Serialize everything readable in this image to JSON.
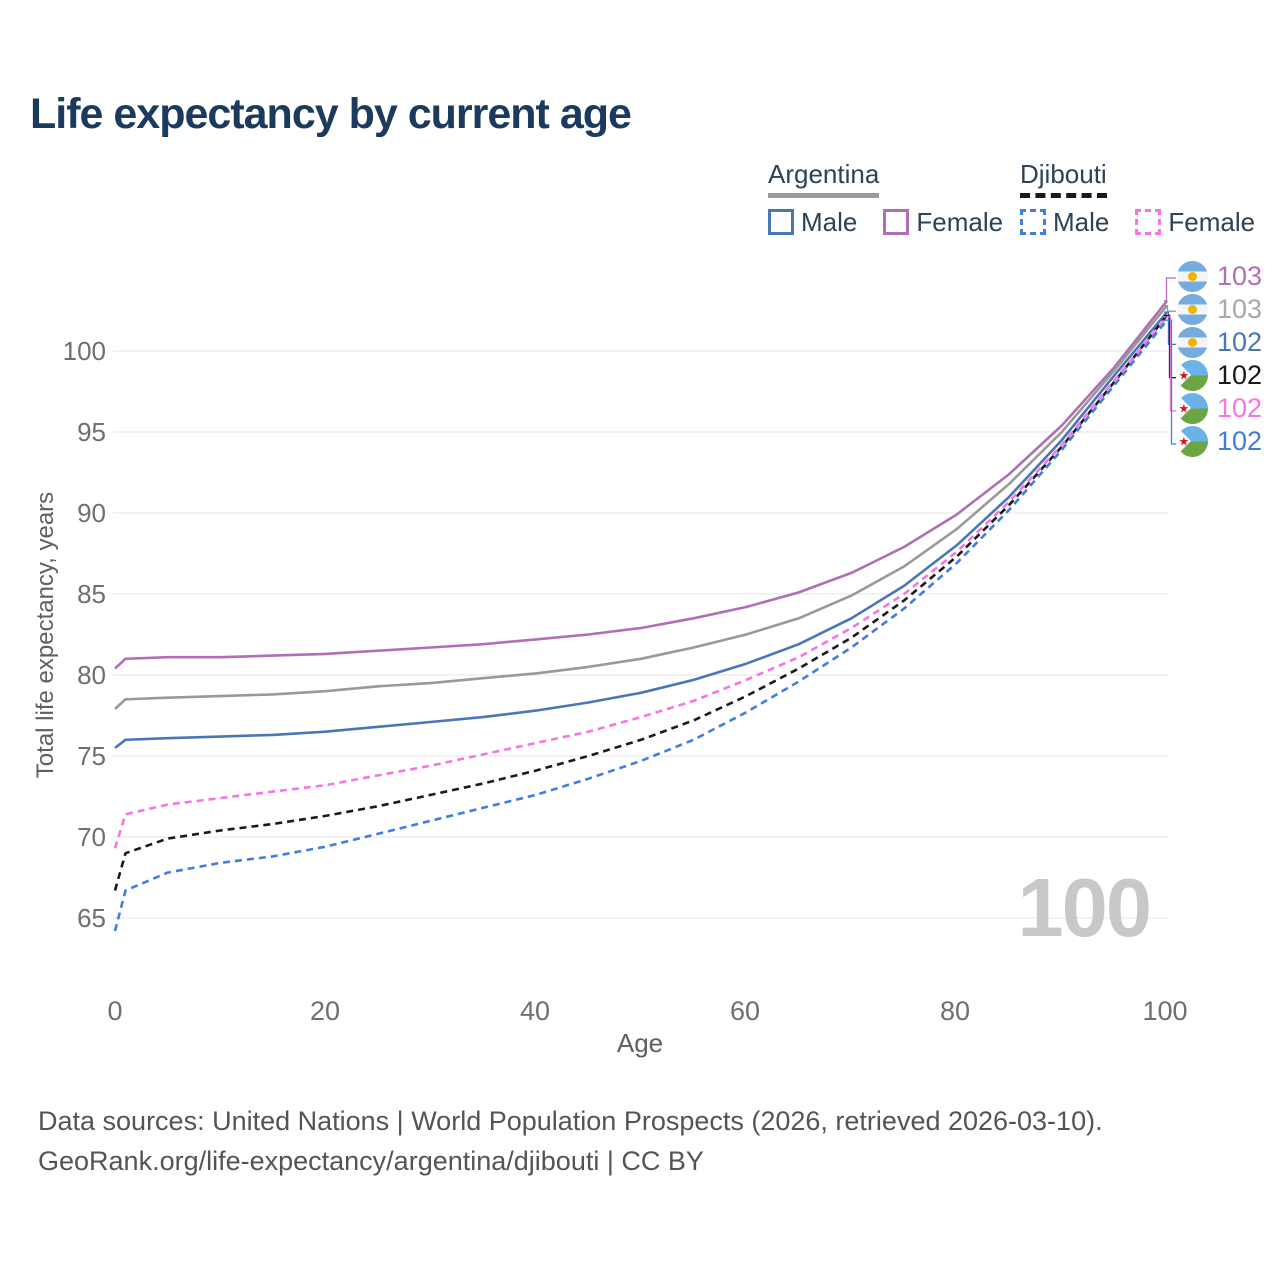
{
  "title": "Life expectancy by current age",
  "legend": {
    "groups": [
      {
        "label": "Argentina",
        "underline_style": "solid",
        "underline_color": "#9b9b9b",
        "items": [
          {
            "label": "Male",
            "color": "#4a76b8",
            "dashed": false
          },
          {
            "label": "Female",
            "color": "#b06fb5",
            "dashed": false
          }
        ]
      },
      {
        "label": "Djibouti",
        "underline_style": "dashed",
        "underline_color": "#1a1a1a",
        "items": [
          {
            "label": "Male",
            "color": "#3f7ee0",
            "dashed": true
          },
          {
            "label": "Female",
            "color": "#f575e5",
            "dashed": true
          }
        ]
      }
    ]
  },
  "chart_data": {
    "type": "line",
    "title": "Life expectancy by current age",
    "xlabel": "Age",
    "ylabel": "Total life expectancy, years",
    "xlim": [
      0,
      100
    ],
    "ylim": [
      63,
      104
    ],
    "x_ticks": [
      "0",
      "20",
      "40",
      "60",
      "80",
      "100"
    ],
    "y_ticks": [
      "65",
      "70",
      "75",
      "80",
      "85",
      "90",
      "95",
      "100"
    ],
    "grid": "horizontal",
    "legend_position": "top-right",
    "x": [
      0,
      1,
      5,
      10,
      15,
      20,
      25,
      30,
      35,
      40,
      45,
      50,
      55,
      60,
      65,
      70,
      75,
      80,
      85,
      90,
      95,
      100
    ],
    "series": [
      {
        "name": "Argentina Female",
        "country": "Argentina",
        "sex": "Female",
        "color": "#b06fb5",
        "dashed": false,
        "end_label": "103",
        "values": [
          80.4,
          81.0,
          81.1,
          81.1,
          81.2,
          81.3,
          81.5,
          81.7,
          81.9,
          82.2,
          82.5,
          82.9,
          83.5,
          84.2,
          85.1,
          86.3,
          87.9,
          89.9,
          92.4,
          95.4,
          99.0,
          103.1
        ]
      },
      {
        "name": "Argentina Both sexes",
        "country": "Argentina",
        "sex": "Both",
        "color": "#999999",
        "dashed": false,
        "end_label": "103",
        "values": [
          77.9,
          78.5,
          78.6,
          78.7,
          78.8,
          79.0,
          79.3,
          79.5,
          79.8,
          80.1,
          80.5,
          81.0,
          81.7,
          82.5,
          83.5,
          84.9,
          86.7,
          89.0,
          91.8,
          95.0,
          98.8,
          102.8
        ]
      },
      {
        "name": "Argentina Male",
        "country": "Argentina",
        "sex": "Male",
        "color": "#4a76b8",
        "dashed": false,
        "end_label": "102",
        "values": [
          75.5,
          76.0,
          76.1,
          76.2,
          76.3,
          76.5,
          76.8,
          77.1,
          77.4,
          77.8,
          78.3,
          78.9,
          79.7,
          80.7,
          81.9,
          83.5,
          85.5,
          88.0,
          91.0,
          94.5,
          98.5,
          102.4
        ]
      },
      {
        "name": "Djibouti Both sexes",
        "country": "Djibouti",
        "sex": "Both",
        "color": "#1a1a1a",
        "dashed": true,
        "end_label": "102",
        "values": [
          66.7,
          69.0,
          69.9,
          70.4,
          70.8,
          71.3,
          71.9,
          72.6,
          73.3,
          74.1,
          75.0,
          76.0,
          77.2,
          78.7,
          80.4,
          82.3,
          84.6,
          87.3,
          90.5,
          94.1,
          98.1,
          102.2
        ]
      },
      {
        "name": "Djibouti Female",
        "country": "Djibouti",
        "sex": "Female",
        "color": "#f575e5",
        "dashed": true,
        "end_label": "102",
        "values": [
          69.3,
          71.4,
          72.0,
          72.4,
          72.8,
          73.2,
          73.8,
          74.4,
          75.1,
          75.8,
          76.5,
          77.4,
          78.4,
          79.7,
          81.1,
          82.9,
          85.0,
          87.6,
          90.7,
          94.2,
          98.2,
          102.1
        ]
      },
      {
        "name": "Djibouti Male",
        "country": "Djibouti",
        "sex": "Male",
        "color": "#3f7ee0",
        "dashed": true,
        "end_label": "102",
        "values": [
          64.2,
          66.7,
          67.8,
          68.4,
          68.8,
          69.4,
          70.2,
          71.0,
          71.8,
          72.6,
          73.6,
          74.7,
          76.0,
          77.7,
          79.6,
          81.7,
          84.1,
          86.9,
          90.2,
          93.9,
          97.9,
          101.9
        ]
      }
    ]
  },
  "right_labels": [
    {
      "value": "103",
      "color": "#b06fb5",
      "flag": "argentina"
    },
    {
      "value": "103",
      "color": "#a8a8a8",
      "flag": "argentina"
    },
    {
      "value": "102",
      "color": "#4a76b8",
      "flag": "argentina"
    },
    {
      "value": "102",
      "color": "#1a1a1a",
      "flag": "djibouti"
    },
    {
      "value": "102",
      "color": "#f575e5",
      "flag": "djibouti"
    },
    {
      "value": "102",
      "color": "#3f7ee0",
      "flag": "djibouti"
    }
  ],
  "watermark": "100",
  "colors": {
    "title": "#1c3a5e",
    "gridline": "#ebebeb",
    "tick_label": "#6f6f6f",
    "axis_title": "#5f5f5f",
    "footer": "#545454",
    "watermark": "#c8c8c8"
  },
  "footer": {
    "line1": "Data sources: United Nations | World Population Prospects (2026, retrieved 2026-03-10).",
    "line2": "GeoRank.org/life-expectancy/argentina/djibouti | CC BY"
  }
}
